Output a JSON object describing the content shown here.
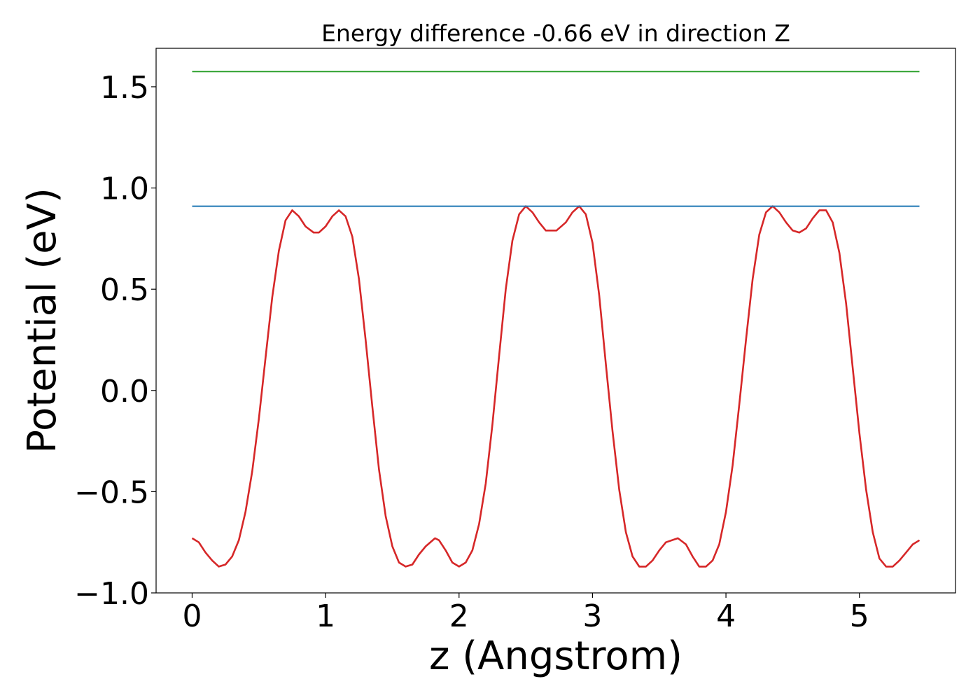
{
  "chart_data": {
    "type": "line",
    "title": "Energy difference -0.66 eV in direction Z",
    "xlabel": "z (Angstrom)",
    "ylabel": "Potential (eV)",
    "xlim": [
      -0.27,
      5.72
    ],
    "ylim": [
      -1.0,
      1.69
    ],
    "xticks": [
      0,
      1,
      2,
      3,
      4,
      5
    ],
    "xtick_labels": [
      "0",
      "1",
      "2",
      "3",
      "4",
      "5"
    ],
    "yticks": [
      -1.0,
      -0.5,
      0.0,
      0.5,
      1.0,
      1.5
    ],
    "ytick_labels": [
      "−1.0",
      "−0.5",
      "0.0",
      "0.5",
      "1.0",
      "1.5"
    ],
    "grid": false,
    "series": [
      {
        "color": "#d62728",
        "x": [
          0.0,
          0.05,
          0.1,
          0.15,
          0.2,
          0.25,
          0.3,
          0.35,
          0.4,
          0.45,
          0.5,
          0.55,
          0.6,
          0.65,
          0.7,
          0.75,
          0.8,
          0.85,
          0.91,
          0.95,
          1.0,
          1.05,
          1.1,
          1.15,
          1.2,
          1.25,
          1.3,
          1.35,
          1.4,
          1.45,
          1.5,
          1.55,
          1.6,
          1.65,
          1.7,
          1.75,
          1.82,
          1.85,
          1.9,
          1.95,
          2.0,
          2.05,
          2.1,
          2.15,
          2.2,
          2.25,
          2.3,
          2.35,
          2.4,
          2.45,
          2.5,
          2.55,
          2.6,
          2.65,
          2.73,
          2.8,
          2.85,
          2.9,
          2.95,
          3.0,
          3.05,
          3.1,
          3.15,
          3.2,
          3.25,
          3.3,
          3.35,
          3.4,
          3.45,
          3.5,
          3.55,
          3.64,
          3.7,
          3.75,
          3.8,
          3.85,
          3.9,
          3.95,
          4.0,
          4.05,
          4.1,
          4.15,
          4.2,
          4.25,
          4.3,
          4.35,
          4.4,
          4.45,
          4.5,
          4.55,
          4.6,
          4.65,
          4.7,
          4.75,
          4.8,
          4.85,
          4.9,
          4.95,
          5.0,
          5.05,
          5.1,
          5.15,
          5.2,
          5.25,
          5.3,
          5.35,
          5.4,
          5.45
        ],
        "values": [
          -0.73,
          -0.75,
          -0.8,
          -0.84,
          -0.87,
          -0.86,
          -0.82,
          -0.74,
          -0.6,
          -0.4,
          -0.14,
          0.16,
          0.46,
          0.69,
          0.84,
          0.89,
          0.86,
          0.81,
          0.78,
          0.78,
          0.81,
          0.86,
          0.89,
          0.86,
          0.76,
          0.55,
          0.25,
          -0.08,
          -0.39,
          -0.62,
          -0.77,
          -0.85,
          -0.87,
          -0.86,
          -0.81,
          -0.77,
          -0.73,
          -0.74,
          -0.79,
          -0.85,
          -0.87,
          -0.85,
          -0.79,
          -0.66,
          -0.46,
          -0.17,
          0.17,
          0.5,
          0.74,
          0.87,
          0.91,
          0.88,
          0.83,
          0.79,
          0.79,
          0.83,
          0.88,
          0.91,
          0.87,
          0.73,
          0.47,
          0.13,
          -0.2,
          -0.49,
          -0.7,
          -0.82,
          -0.87,
          -0.87,
          -0.84,
          -0.79,
          -0.75,
          -0.73,
          -0.76,
          -0.82,
          -0.87,
          -0.87,
          -0.84,
          -0.76,
          -0.6,
          -0.37,
          -0.07,
          0.25,
          0.55,
          0.77,
          0.88,
          0.91,
          0.88,
          0.83,
          0.79,
          0.78,
          0.8,
          0.85,
          0.89,
          0.89,
          0.83,
          0.68,
          0.43,
          0.11,
          -0.21,
          -0.49,
          -0.7,
          -0.83,
          -0.87,
          -0.87,
          -0.84,
          -0.8,
          -0.76,
          -0.74
        ]
      },
      {
        "color": "#1f77b4",
        "x": [
          0.0,
          5.45
        ],
        "values": [
          0.91,
          0.91
        ]
      },
      {
        "color": "#2ca02c",
        "x": [
          0.0,
          5.45
        ],
        "values": [
          1.575,
          1.575
        ]
      }
    ]
  }
}
